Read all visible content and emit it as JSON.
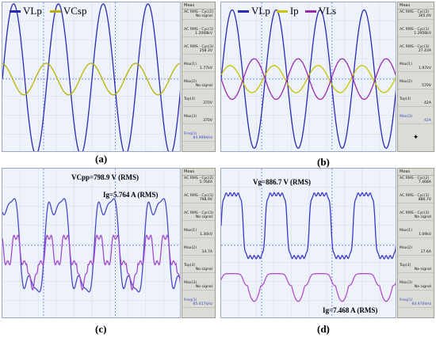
{
  "chart_data": [
    {
      "type": "line",
      "caption": "(a)",
      "series": [
        {
          "name": "VLp",
          "color": "#2a2ab5",
          "amplitude": 1.0,
          "cycles": 4.0,
          "phase": 0
        },
        {
          "name": "VCsp",
          "color": "#b8b400",
          "amplitude": 0.21,
          "cycles": 4.0,
          "phase": 1.7
        }
      ],
      "measurements": {
        "title": "Meas",
        "items": [
          {
            "label": "AC RMS - Cyc(2)",
            "value": "No signal"
          },
          {
            "label": "AC RMS - Cyc(1)",
            "value": "1.2068kV"
          },
          {
            "label": "AC RMS - Cyc(3)",
            "value": "258.3V"
          },
          {
            "label": "Max(1)",
            "value": "1.77kV"
          },
          {
            "label": "Max(2)",
            "value": "No signal"
          },
          {
            "label": "Top(3)",
            "value": "370V"
          },
          {
            "label": "Max(3)",
            "value": "370V"
          },
          {
            "label": "Freq(1)",
            "value": "84.999kHz",
            "blue": true
          }
        ],
        "footer": "✦"
      }
    },
    {
      "type": "line",
      "caption": "(b)",
      "series": [
        {
          "name": "VLp",
          "color": "#2a2ab5",
          "amplitude": 0.92,
          "cycles": 4.0,
          "phase": 0
        },
        {
          "name": "Ip",
          "color": "#c8c400",
          "amplitude": 0.18,
          "cycles": 4.0,
          "phase": 0.3
        },
        {
          "name": "VLs",
          "color": "#9a2ab0",
          "amplitude": 0.27,
          "cycles": 4.0,
          "phase": 3.14
        }
      ],
      "measurements": {
        "title": "Meas",
        "items": [
          {
            "label": "AC RMS - Cyc(2)",
            "value": "365.0V"
          },
          {
            "label": "AC RMS - Cyc(1)",
            "value": "1.2956kV"
          },
          {
            "label": "AC RMS - Cyc(3)",
            "value": "27.43A"
          },
          {
            "label": "Max(1)",
            "value": "1.97kV"
          },
          {
            "label": "Max(2)",
            "value": "570V"
          },
          {
            "label": "Top(3)",
            "value": "42A"
          },
          {
            "label": "Max(3)",
            "value": "42A",
            "blue": true
          }
        ],
        "footer": "✦"
      }
    },
    {
      "type": "line",
      "caption": "(c)",
      "annotations": [
        "VCpp=798.9 V (RMS)",
        "Ig=5.764 A (RMS)"
      ],
      "series": [
        {
          "name": "",
          "color": "#4a4ac8",
          "amplitude": 0.9,
          "cycles": 3.6,
          "phase": 0.9
        },
        {
          "name": "",
          "color": "#a24ad0",
          "amplitude": 0.35,
          "cycles": 3.6,
          "phase": 0.9
        }
      ],
      "measurements": {
        "title": "Meas",
        "items": [
          {
            "label": "AC RMS - Cyc(2)",
            "value": "5.764A"
          },
          {
            "label": "AC RMS - Cyc(1)",
            "value": "798.9V"
          },
          {
            "label": "AC RMS - Cyc(3)",
            "value": "No signal"
          },
          {
            "label": "Max(1)",
            "value": "1.30kV"
          },
          {
            "label": "Max(2)",
            "value": "14.7A"
          },
          {
            "label": "Top(3)",
            "value": "No signal"
          },
          {
            "label": "Max(3)",
            "value": "No signal"
          },
          {
            "label": "Freq(1)",
            "value": "85.017kHz",
            "blue": true
          }
        ],
        "footer": "✦"
      }
    },
    {
      "type": "line",
      "caption": "(d)",
      "annotations": [
        "Vg=886.7 V (RMS)",
        "Ig=7.468 A (RMS)"
      ],
      "series": [
        {
          "name": "",
          "color": "#3a3ac8",
          "amplitude": 0.9,
          "cycles": 4.0,
          "phase": 0
        },
        {
          "name": "",
          "color": "#b050c8",
          "amplitude": 0.3,
          "cycles": 4.0,
          "phase": 0
        }
      ],
      "measurements": {
        "title": "Meas",
        "items": [
          {
            "label": "AC RMS - Cyc(2)",
            "value": "7.468A"
          },
          {
            "label": "AC RMS - Cyc(1)",
            "value": "886.7V"
          },
          {
            "label": "AC RMS - Cyc(3)",
            "value": "No signal"
          },
          {
            "label": "Max(1)",
            "value": "1.09kV"
          },
          {
            "label": "Max(2)",
            "value": "17.6A"
          },
          {
            "label": "Top(3)",
            "value": "No signal"
          },
          {
            "label": "Max(3)",
            "value": "No signal"
          },
          {
            "label": "Freq(1)",
            "value": "84.970kHz",
            "blue": true
          }
        ],
        "footer": "✦"
      }
    }
  ]
}
